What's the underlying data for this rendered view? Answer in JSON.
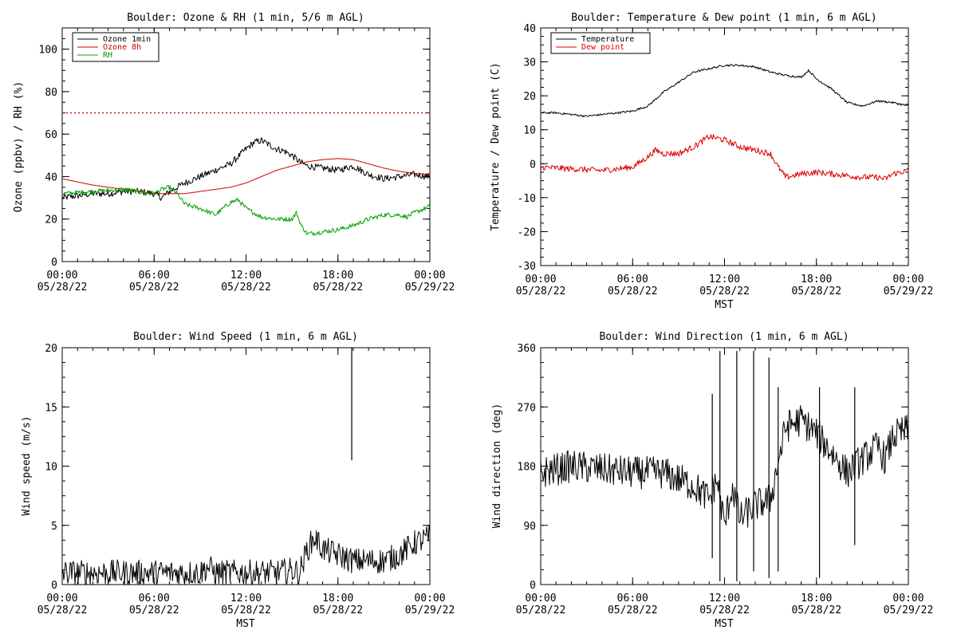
{
  "chart_data": [
    {
      "type": "line",
      "title": "Boulder: Ozone & RH (1 min, 5/6 m AGL)",
      "xlabel": "",
      "ylabel": "Ozone (ppbv) / RH (%)",
      "ylim": [
        0,
        110
      ],
      "yticks": [
        0,
        20,
        40,
        60,
        80,
        100
      ],
      "xlim": [
        0,
        24
      ],
      "xticks": [
        {
          "v": 0,
          "time": "00:00",
          "date": "05/28/22"
        },
        {
          "v": 6,
          "time": "06:00",
          "date": "05/28/22"
        },
        {
          "v": 12,
          "time": "12:00",
          "date": "05/28/22"
        },
        {
          "v": 18,
          "time": "18:00",
          "date": "05/28/22"
        },
        {
          "v": 24,
          "time": "00:00",
          "date": "05/29/22"
        }
      ],
      "legend_position": "top-left",
      "reference_lines": [
        {
          "y": 70,
          "color": "#cc0000",
          "style": "dotted"
        }
      ],
      "series": [
        {
          "name": "Ozone 1min",
          "color": "#000000",
          "noise": 1.6,
          "x": [
            0,
            1,
            2,
            3,
            4,
            5,
            6,
            6.5,
            7,
            7.5,
            8,
            9,
            10,
            11,
            12,
            12.5,
            13,
            13.5,
            14,
            14.5,
            15,
            15.5,
            16,
            17,
            18,
            19,
            20,
            21,
            22,
            23,
            24
          ],
          "y": [
            30,
            31,
            32,
            32,
            33,
            33,
            32,
            30,
            33,
            35,
            37,
            40,
            43,
            46,
            53,
            56,
            57,
            55,
            53,
            52,
            50,
            47,
            45,
            44,
            43,
            45,
            41,
            39,
            40,
            41,
            40
          ]
        },
        {
          "name": "Ozone 8h",
          "color": "#cc0000",
          "noise": 0,
          "x": [
            0,
            2,
            4,
            6,
            8,
            10,
            11,
            12,
            13,
            14,
            15,
            16,
            17,
            18,
            19,
            20,
            21,
            22,
            23,
            24
          ],
          "y": [
            39,
            36,
            34,
            32,
            32,
            34,
            35,
            37,
            40,
            43,
            45,
            47,
            48,
            48.5,
            48,
            46,
            44,
            42.5,
            41.5,
            41
          ]
        },
        {
          "name": "RH",
          "color": "#00a000",
          "noise": 1.1,
          "x": [
            0,
            2,
            4,
            6,
            6.5,
            7,
            7.5,
            8,
            9,
            10,
            11,
            11.5,
            12,
            13,
            14,
            15,
            15.3,
            15.6,
            16,
            17,
            18,
            19,
            20,
            21,
            22,
            22.5,
            23,
            24
          ],
          "y": [
            32,
            33,
            34,
            32,
            34,
            35,
            32,
            27,
            25,
            22,
            28,
            29,
            25,
            21,
            20,
            20,
            23,
            17,
            13,
            14,
            15,
            17,
            20,
            22,
            22,
            21,
            23,
            26
          ]
        }
      ]
    },
    {
      "type": "line",
      "title": "Boulder: Temperature & Dew point (1 min, 6 m AGL)",
      "xlabel": "MST",
      "ylabel": "Temperature / Dew point (C)",
      "ylim": [
        -30,
        40
      ],
      "yticks": [
        -30,
        -20,
        -10,
        0,
        10,
        20,
        30,
        40
      ],
      "xlim": [
        0,
        24
      ],
      "xticks": [
        {
          "v": 0,
          "time": "00:00",
          "date": "05/28/22"
        },
        {
          "v": 6,
          "time": "06:00",
          "date": "05/28/22"
        },
        {
          "v": 12,
          "time": "12:00",
          "date": "05/28/22"
        },
        {
          "v": 18,
          "time": "18:00",
          "date": "05/28/22"
        },
        {
          "v": 24,
          "time": "00:00",
          "date": "05/29/22"
        }
      ],
      "legend_position": "top-left",
      "series": [
        {
          "name": "Temperature",
          "color": "#000000",
          "noise": 0.3,
          "x": [
            0,
            1,
            2,
            3,
            4,
            5,
            6,
            7,
            8,
            9,
            10,
            11,
            12,
            13,
            14,
            15,
            16,
            17,
            17.5,
            18,
            19,
            20,
            21,
            22,
            23,
            24
          ],
          "y": [
            15,
            15,
            14.5,
            14,
            14.5,
            15,
            15.5,
            17,
            21,
            24,
            27,
            28,
            29,
            29,
            28.5,
            27,
            26,
            25.5,
            27.5,
            25,
            22,
            18,
            17,
            18.5,
            18,
            17
          ]
        },
        {
          "name": "Dew point",
          "color": "#dd0000",
          "noise": 0.9,
          "x": [
            0,
            2,
            4,
            6,
            7,
            7.5,
            8,
            9,
            10,
            11,
            12,
            13,
            14,
            15,
            15.5,
            16,
            17,
            18,
            19,
            20,
            21,
            22,
            22.5,
            23,
            24
          ],
          "y": [
            -1,
            -1.5,
            -2,
            -1,
            2,
            4,
            3,
            3,
            5,
            8,
            7,
            5,
            4,
            3,
            -1,
            -4,
            -3,
            -2.5,
            -3,
            -3.5,
            -4,
            -4,
            -4.5,
            -3,
            -2
          ]
        }
      ]
    },
    {
      "type": "line",
      "title": "Boulder: Wind Speed (1 min, 6 m AGL)",
      "xlabel": "MST",
      "ylabel": "Wind speed (m/s)",
      "ylim": [
        0,
        20
      ],
      "yticks": [
        0,
        5,
        10,
        15,
        20
      ],
      "xlim": [
        0,
        24
      ],
      "xticks": [
        {
          "v": 0,
          "time": "00:00",
          "date": "05/28/22"
        },
        {
          "v": 6,
          "time": "06:00",
          "date": "05/28/22"
        },
        {
          "v": 12,
          "time": "12:00",
          "date": "05/28/22"
        },
        {
          "v": 18,
          "time": "18:00",
          "date": "05/28/22"
        },
        {
          "v": 24,
          "time": "00:00",
          "date": "05/29/22"
        }
      ],
      "spikes": [
        {
          "x": 18.9,
          "y1": 10.5,
          "y2": 20
        }
      ],
      "series": [
        {
          "name": "",
          "color": "#000000",
          "noise": 1.1,
          "x": [
            0,
            2,
            4,
            6,
            8,
            9,
            9.5,
            10,
            12,
            14,
            15,
            15.5,
            16,
            16.5,
            17,
            18,
            19,
            20,
            21,
            22,
            22.5,
            23,
            24
          ],
          "y": [
            1,
            1,
            1,
            1,
            1,
            1,
            1.5,
            1,
            1,
            1,
            1.2,
            1,
            3,
            4,
            3,
            2.5,
            2,
            2,
            2,
            2.5,
            3,
            3.5,
            4
          ]
        }
      ]
    },
    {
      "type": "line",
      "title": "Boulder: Wind Direction (1 min, 6 m AGL)",
      "xlabel": "MST",
      "ylabel": "Wind direction (deg)",
      "ylim": [
        0,
        360
      ],
      "yticks": [
        0,
        90,
        180,
        270,
        360
      ],
      "xlim": [
        0,
        24
      ],
      "xticks": [
        {
          "v": 0,
          "time": "00:00",
          "date": "05/28/22"
        },
        {
          "v": 6,
          "time": "06:00",
          "date": "05/28/22"
        },
        {
          "v": 12,
          "time": "12:00",
          "date": "05/28/22"
        },
        {
          "v": 18,
          "time": "18:00",
          "date": "05/28/22"
        },
        {
          "v": 24,
          "time": "00:00",
          "date": "05/29/22"
        }
      ],
      "spikes": [
        {
          "x": 11.2,
          "y1": 40,
          "y2": 290
        },
        {
          "x": 11.7,
          "y1": 5,
          "y2": 355
        },
        {
          "x": 12.8,
          "y1": 5,
          "y2": 355
        },
        {
          "x": 13.9,
          "y1": 20,
          "y2": 355
        },
        {
          "x": 14.9,
          "y1": 10,
          "y2": 345
        },
        {
          "x": 15.5,
          "y1": 20,
          "y2": 300
        },
        {
          "x": 18.2,
          "y1": 10,
          "y2": 300
        },
        {
          "x": 20.5,
          "y1": 60,
          "y2": 300
        }
      ],
      "series": [
        {
          "name": "",
          "color": "#000000",
          "noise": 25,
          "x": [
            0,
            2,
            4,
            6,
            8,
            9,
            10,
            11,
            11.5,
            12,
            12.5,
            13,
            14,
            15,
            16,
            17,
            18,
            19,
            20,
            21,
            22,
            22.5,
            23,
            24
          ],
          "y": [
            170,
            180,
            175,
            170,
            170,
            160,
            150,
            130,
            160,
            90,
            150,
            100,
            120,
            130,
            240,
            250,
            230,
            200,
            170,
            190,
            210,
            190,
            225,
            235
          ]
        }
      ]
    }
  ]
}
